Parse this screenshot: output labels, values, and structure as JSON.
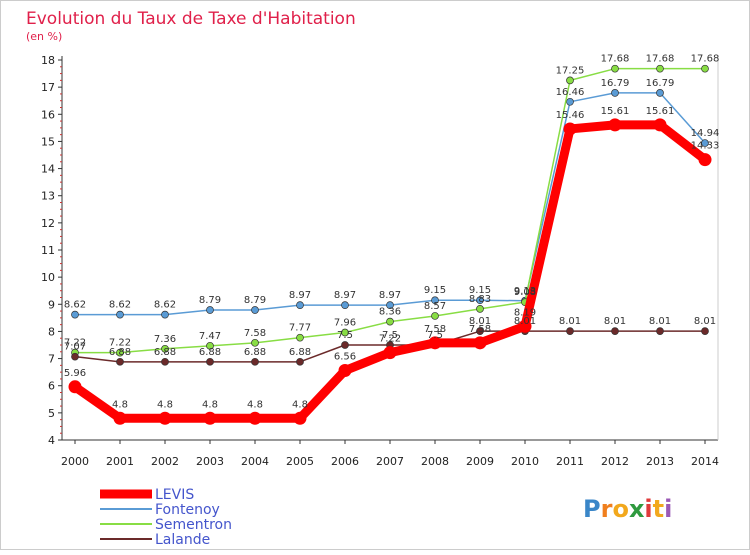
{
  "chart_data": {
    "type": "line",
    "title": "Evolution du Taux de Taxe d'Habitation",
    "unit_label": "(en %)",
    "x": [
      "2000",
      "2001",
      "2002",
      "2003",
      "2004",
      "2005",
      "2006",
      "2007",
      "2008",
      "2009",
      "2010",
      "2011",
      "2012",
      "2013",
      "2014"
    ],
    "ylim": [
      4,
      18
    ],
    "yticks": [
      "4",
      "5",
      "6",
      "7",
      "8",
      "9",
      "10",
      "11",
      "12",
      "13",
      "14",
      "15",
      "16",
      "17",
      "18"
    ],
    "grid": false,
    "legend_position": "bottom-left",
    "series": [
      {
        "name": "LEVIS",
        "color": "#ff0000",
        "values": [
          5.96,
          4.8,
          4.8,
          4.8,
          4.8,
          4.8,
          6.56,
          7.22,
          7.58,
          7.58,
          8.19,
          15.46,
          15.61,
          15.61,
          14.33
        ],
        "labels": [
          "5.96",
          "4.8",
          "4.8",
          "4.8",
          "4.8",
          "4.8",
          "6.56",
          "7.22",
          "7.58",
          "7.58",
          "8.19",
          "15.46",
          "15.61",
          "15.61",
          "14.33"
        ]
      },
      {
        "name": "Fontenoy",
        "color": "#5a9bd5",
        "values": [
          8.62,
          8.62,
          8.62,
          8.79,
          8.79,
          8.97,
          8.97,
          8.97,
          9.15,
          9.15,
          9.13,
          16.46,
          16.79,
          16.79,
          14.94
        ],
        "labels": [
          "8.62",
          "8.62",
          "8.62",
          "8.79",
          "8.79",
          "8.97",
          "8.97",
          "8.97",
          "9.15",
          "9.15",
          "9.13",
          "16.46",
          "16.79",
          "16.79",
          "14.94"
        ]
      },
      {
        "name": "Sementron",
        "color": "#88dd44",
        "values": [
          7.22,
          7.22,
          7.36,
          7.47,
          7.58,
          7.77,
          7.96,
          8.36,
          8.57,
          8.83,
          9.08,
          17.25,
          17.68,
          17.68,
          17.68
        ],
        "labels": [
          "7.22",
          "7.22",
          "7.36",
          "7.47",
          "7.58",
          "7.77",
          "7.96",
          "8.36",
          "8.57",
          "8.83",
          "9.08",
          "17.25",
          "17.68",
          "17.68",
          "17.68"
        ]
      },
      {
        "name": "Lalande",
        "color": "#6b2a2a",
        "values": [
          7.07,
          6.88,
          6.88,
          6.88,
          6.88,
          6.88,
          7.5,
          7.5,
          7.5,
          8.01,
          8.01,
          8.01,
          8.01,
          8.01,
          8.01
        ],
        "labels": [
          "7.07",
          "6.88",
          "6.88",
          "6.88",
          "6.88",
          "6.88",
          "7.5",
          "7.5",
          "7.5",
          "8.01",
          "8.01",
          "8.01",
          "8.01",
          "8.01",
          "8.01"
        ]
      }
    ]
  },
  "brand": {
    "name": "Proxiti",
    "letters": [
      "P",
      "r",
      "o",
      "x",
      "i",
      "t",
      "i"
    ],
    "colors": [
      "#3a86c8",
      "#f07f1e",
      "#f2a81d",
      "#2f9a3f",
      "#e03b3b",
      "#f2a81d",
      "#9b59b6"
    ]
  }
}
